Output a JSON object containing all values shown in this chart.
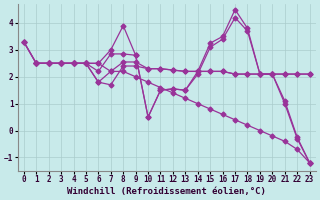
{
  "xlabel": "Windchill (Refroidissement éolien,°C)",
  "bg_color": "#c8eaea",
  "line_color": "#993399",
  "grid_color": "#aacccc",
  "xlim": [
    -0.5,
    23.5
  ],
  "ylim": [
    -1.5,
    4.7
  ],
  "yticks": [
    -1,
    0,
    1,
    2,
    3,
    4
  ],
  "xticks": [
    0,
    1,
    2,
    3,
    4,
    5,
    6,
    7,
    8,
    9,
    10,
    11,
    12,
    13,
    14,
    15,
    16,
    17,
    18,
    19,
    20,
    21,
    22,
    23
  ],
  "lines": [
    {
      "x": [
        0,
        1,
        2,
        3,
        4,
        5,
        6,
        7,
        8,
        9,
        10,
        11,
        12,
        13,
        14,
        15,
        16,
        17,
        18,
        19,
        20,
        21,
        22,
        23
      ],
      "y": [
        3.3,
        2.5,
        2.5,
        2.5,
        2.5,
        2.5,
        2.5,
        3.0,
        3.9,
        2.8,
        0.5,
        1.5,
        1.55,
        1.5,
        2.2,
        3.25,
        3.5,
        4.5,
        3.8,
        2.1,
        2.1,
        1.1,
        -0.25,
        -1.2
      ]
    },
    {
      "x": [
        0,
        1,
        2,
        3,
        4,
        5,
        6,
        7,
        8,
        9,
        10,
        11,
        12,
        13,
        14,
        15,
        16,
        17,
        18,
        19,
        20,
        21,
        22,
        23
      ],
      "y": [
        3.3,
        2.5,
        2.5,
        2.5,
        2.5,
        2.5,
        2.2,
        2.85,
        2.85,
        2.8,
        0.5,
        1.5,
        1.55,
        1.5,
        2.1,
        3.1,
        3.4,
        4.2,
        3.7,
        2.1,
        2.1,
        1.0,
        -0.3,
        -1.2
      ]
    },
    {
      "x": [
        1,
        2,
        3,
        4,
        5,
        6,
        7,
        8,
        9,
        10,
        11,
        12,
        13,
        14,
        15,
        16,
        17,
        18,
        19,
        20,
        21,
        22,
        23
      ],
      "y": [
        2.5,
        2.5,
        2.5,
        2.5,
        2.5,
        1.8,
        2.2,
        2.55,
        2.55,
        2.3,
        2.3,
        2.25,
        2.2,
        2.2,
        2.2,
        2.2,
        2.1,
        2.1,
        2.1,
        2.1,
        2.1,
        2.1,
        2.1
      ]
    },
    {
      "x": [
        1,
        2,
        3,
        4,
        5,
        6,
        7,
        8,
        9,
        10,
        11,
        12,
        13,
        14,
        15,
        16,
        17,
        18,
        19,
        20,
        21,
        22,
        23
      ],
      "y": [
        2.5,
        2.5,
        2.5,
        2.5,
        2.5,
        1.8,
        1.7,
        2.4,
        2.4,
        2.3,
        2.3,
        2.25,
        2.2,
        2.2,
        2.2,
        2.2,
        2.1,
        2.1,
        2.1,
        2.1,
        2.1,
        2.1,
        2.1
      ]
    },
    {
      "x": [
        0,
        1,
        2,
        3,
        4,
        5,
        6,
        7,
        8,
        9,
        10,
        11,
        12,
        13,
        14,
        15,
        16,
        17,
        18,
        19,
        20,
        21,
        22,
        23
      ],
      "y": [
        3.3,
        2.5,
        2.5,
        2.5,
        2.5,
        2.5,
        2.5,
        2.2,
        2.2,
        2.0,
        1.8,
        1.6,
        1.4,
        1.2,
        1.0,
        0.8,
        0.6,
        0.4,
        0.2,
        0.0,
        -0.2,
        -0.4,
        -0.7,
        -1.2
      ]
    }
  ],
  "markersize": 2.5,
  "linewidth": 0.9,
  "tick_fontsize": 5.5,
  "xlabel_fontsize": 6.5
}
